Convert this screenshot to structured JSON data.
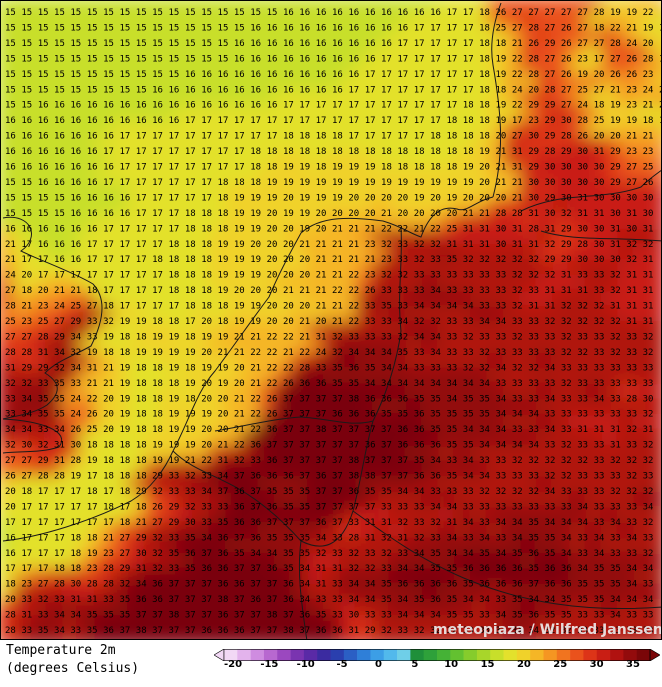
{
  "map": {
    "kind": "temperature 2m forecast grid",
    "credit": "meteoblue",
    "credit_text": "meteopiaza / Wilfred Janssen",
    "grid_font_color": "#000000",
    "rows": [
      "15 15 15 15 15 15 15 15 15 15 15 15 15 15 15 15 15 16 16 16 16 16 16 16 16 16 16 17 17 18 26 27 27 27 27 27 28 19 19 22",
      "15 15 15 15 15 15 15 15 15 15 15 15 15 15 15 16 16 16 16 16 16 16 16 16 16 17 17 17 17 18 25 27 28 27 26 27 18 22 21 19 18",
      "15 15 15 15 15 15 15 15 15 15 15 15 15 15 16 16 16 16 16 16 16 16 16 16 17 17 17 17 17 18 18 21 26 29 26 27 27 28 24 20",
      "15 15 15 15 15 15 15 15 15 15 15 15 15 15 16 16 16 16 16 16 16 16 16 17 17 17 17 17 17 18 19 22 28 27 26 23 17 27 26 28 19",
      "15 15 15 15 15 15 15 15 15 15 15 16 16 16 16 16 16 16 16 16 16 16 17 17 17 17 17 17 17 18 19 22 28 27 26 19 20 26 26 23",
      "15 15 15 15 15 15 15 15 15 16 16 16 16 16 16 16 16 16 16 16 16 17 17 17 17 17 17 17 17 18 18 24 20 28 27 25 27 21 23 24 20",
      "15 15 16 16 16 16 16 16 16 16 16 16 16 16 16 16 16 17 17 17 17 17 17 17 17 17 17 17 18 18 19 22 29 29 27 24 18 19 23 21 24",
      "16 16 16 16 16 16 16 16 16 16 16 17 17 17 17 17 17 17 17 17 17 17 17 17 17 17 17 18 18 18 19 17 23 29 30 28 25 19 19 18 18",
      "16 16 16 16 16 16 16 17 17 17 17 17 17 17 17 17 17 18 18 18 18 17 17 17 17 17 18 18 18 18 20 27 30 29 28 26 20 20 21 21",
      "16 16 16 16 16 16 17 17 17 17 17 17 17 17 17 18 18 18 18 18 18 18 18 18 18 18 18 18 18 19 21 31 29 28 29 30 31 29 23 23",
      "16 16 16 16 16 16 16 17 17 17 17 17 17 17 17 18 18 19 19 18 19 19 19 18 18 18 18 18 19 20 21 31 29 30 30 30 30 29 27 25",
      "15 15 16 16 16 16 17 17 17 17 17 17 17 18 18 18 19 19 19 19 19 19 19 19 19 19 19 19 19 20 21 21 30 30 30 30 30 29 27 26",
      "15 15 15 15 16 16 16 16 17 17 17 17 17 18 19 19 19 20 19 19 19 20 20 20 20 19 20 19 20 20 20 21 30 29 30 31 30 30 30 30",
      "15 15 15 15 16 16 16 16 17 17 17 18 18 18 19 19 20 19 19 20 20 20 20 21 20 20 20 20 21 21 28 28 31 30 32 31 31 30 31 30",
      "16 16 16 16 16 16 17 17 17 17 17 18 18 18 19 19 20 20 19 20 21 21 21 22 22 21 22 25 31 31 30 31 28 31 29 30 30 31 30 31",
      "21 17 16 16 16 17 17 17 17 17 18 18 18 19 19 20 20 20 21 21 21 21 23 32 33 32 32 31 31 31 30 31 31 32 29 28 30 31 32 32",
      "21 17 17 16 16 17 17 17 17 18 18 18 18 19 19 19 20 20 20 21 21 21 21 23 33 32 33 35 32 32 32 32 32 29 29 30 30 30 32 31",
      "24 20 17 17 17 17 17 17 17 17 18 18 18 19 19 19 20 20 20 21 21 22 23 32 32 33 33 33 33 33 33 32 32 32 31 33 33 32 31 31",
      "27 18 20 21 21 18 17 17 17 17 18 18 18 19 20 20 20 21 21 21 22 22 26 33 33 33 34 33 33 33 33 32 33 31 31 31 33 32 31 31",
      "28 21 23 24 25 27 18 17 17 17 17 18 18 18 19 19 20 20 20 21 21 22 33 35 33 34 34 34 34 33 33 32 31 31 32 32 32 31 31 31",
      "25 23 25 27 29 33 32 19 19 18 18 17 20 18 19 19 20 20 21 20 21 22 33 33 34 32 32 33 33 34 34 33 33 32 32 32 32 32 31 31",
      "27 27 28 29 34 33 19 18 18 19 19 18 19 19 21 21 22 22 21 31 32 33 33 33 32 34 34 33 32 33 33 32 33 33 32 33 33 32 33 32",
      "28 28 31 34 32 19 18 18 19 19 19 19 20 21 21 22 22 21 22 24 32 34 34 34 35 33 34 33 33 32 33 33 33 33 32 32 33 32 33 32",
      "31 29 29 32 34 31 21 19 18 18 19 18 19 19 20 21 22 22 28 33 35 36 35 34 34 33 33 33 32 32 34 32 32 34 33 33 33 33 33 33",
      "32 32 33 35 33 21 21 19 18 18 18 19 20 19 20 21 22 26 36 36 35 35 34 34 34 34 34 34 34 34 33 33 33 33 32 33 33 33 33 33",
      "33 34 35 35 24 22 20 19 18 18 19 18 20 20 21 22 26 37 37 37 37 38 36 36 36 35 35 34 35 35 34 33 33 34 33 33 34 33 28 30",
      "33 34 35 35 24 26 20 19 18 18 19 19 19 20 21 22 26 37 37 37 36 36 36 35 35 36 35 35 35 35 34 34 34 33 33 33 33 33 33 32",
      "34 34 33 34 26 25 20 19 18 18 19 19 20 20 21 22 36 37 37 38 37 37 37 37 36 36 35 35 34 34 34 33 33 34 33 31 31 31 32 31",
      "32 30 32 31 30 18 18 18 18 19 19 19 20 21 22 36 37 37 37 37 37 37 36 37 36 36 36 35 35 34 34 34 34 33 32 33 33 31 33 32",
      "27 27 29 31 28 19 18 18 18 19 19 21 22 31 32 33 36 37 37 37 37 38 37 37 37 35 34 33 34 33 33 32 32 32 32 32 33 32 32 32",
      "26 27 28 28 19 17 18 18 18 29 33 32 33 34 37 36 36 36 37 36 37 38 38 37 37 36 36 35 34 34 33 33 33 32 32 33 33 33 32 33",
      "20 18 17 17 17 18 17 18 29 32 33 33 34 37 36 37 35 35 35 37 37 36 35 35 34 34 33 33 33 32 32 32 32 34 33 33 33 32 32 32",
      "20 17 17 17 17 17 18 17 18 26 29 32 33 33 36 37 36 35 35 37 37 37 37 33 33 33 34 34 33 33 33 33 33 33 33 34 33 33 33 34",
      "17 17 17 17 17 17 17 18 21 27 29 30 33 35 36 36 37 37 37 36 37 33 31 31 32 33 32 31 34 33 34 34 35 34 34 34 33 34 33 32",
      "16 17 17 17 18 18 21 27 29 32 33 35 34 36 37 36 35 35 35 34 33 28 31 32 31 32 33 34 33 34 33 34 35 35 34 33 34 33 34 33",
      "16 17 17 17 18 19 23 27 30 32 35 36 37 36 35 34 34 35 35 32 33 32 33 32 33 34 35 34 34 35 34 35 36 35 34 33 34 33 33 32",
      "17 17 17 18 18 23 28 29 31 32 33 35 36 36 37 37 36 35 34 31 31 32 32 33 34 34 35 35 36 36 36 36 35 36 36 34 35 35 34 34",
      "18 23 27 28 30 28 28 32 34 36 37 37 37 36 36 37 37 36 34 31 33 34 34 35 36 36 36 36 35 36 36 36 37 36 36 35 35 35 34 33",
      "20 33 32 33 31 31 33 35 36 36 37 37 37 38 37 36 37 36 34 33 33 34 34 35 34 35 36 35 34 34 33 35 34 34 35 35 35 34 34 34",
      "28 31 33 34 34 35 35 35 37 37 38 37 37 36 37 37 38 37 36 35 33 30 33 33 34 34 34 35 35 33 34 35 36 35 35 33 33 34 33 33",
      "28 33 35 34 33 35 36 37 38 37 37 37 36 36 36 37 37 38 37 36 36 31 29 32 33 32 32 32 33 33 33 34 34 32 32 33 33 33 33 33"
    ]
  },
  "legend": {
    "title_line1": "Temperature 2m",
    "title_line2": "(degrees Celsius)",
    "ticks": [
      "-20",
      "-15",
      "-10",
      "-5",
      "0",
      "5",
      "10",
      "15",
      "20",
      "25",
      "30",
      "35"
    ],
    "tick_values": [
      -20,
      -15,
      -10,
      -5,
      0,
      5,
      10,
      15,
      20,
      25,
      30,
      35
    ],
    "range": [
      -22,
      37
    ],
    "colors": [
      "#f2d8f5",
      "#e3b3ec",
      "#cf8ce0",
      "#b868d0",
      "#9b48bf",
      "#7a34b0",
      "#5a2aa6",
      "#3b2ba0",
      "#2a3fae",
      "#2b5fc4",
      "#2f7fd8",
      "#3c9ee6",
      "#52b9ec",
      "#6fcfe8",
      "#1f8f3a",
      "#2ea13a",
      "#45b236",
      "#63c130",
      "#86cc2c",
      "#a8d62a",
      "#c8df2a",
      "#e3e12c",
      "#f0d22a",
      "#f5b626",
      "#f59622",
      "#f1741f",
      "#ea521c",
      "#dd3418",
      "#c91e14",
      "#b01210",
      "#930b0c",
      "#7a0608"
    ]
  }
}
